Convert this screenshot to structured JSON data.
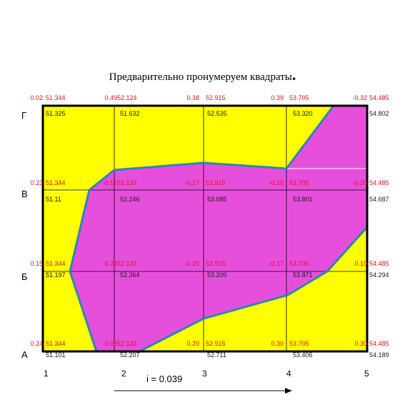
{
  "title": "Предварительно пронумеруем квадраты",
  "title_dot": ".",
  "row_labels": [
    "Г",
    "В",
    "Б",
    "А"
  ],
  "col_labels": [
    "1",
    "2",
    "3",
    "4",
    "5"
  ],
  "slope_label": "i = 0.039",
  "design_marks": {
    "Г": [
      {
        "diff": "0.02",
        "design": "51.344"
      },
      {
        "diff": "0.49",
        "design": "52.124"
      },
      {
        "diff": "0.38",
        "design": "52.915"
      },
      {
        "diff": "0.39",
        "design": "53.705"
      },
      {
        "diff": "-0.32",
        "design": "54.485"
      }
    ],
    "В": [
      {
        "diff": "0.23",
        "design": "51.344"
      },
      {
        "diff": "-0.12",
        "design": "52.124"
      },
      {
        "diff": "-0.17",
        "design": "52.915"
      },
      {
        "diff": "-0.10",
        "design": "53.705"
      },
      {
        "diff": "-0.20",
        "design": "54.485"
      }
    ],
    "Б": [
      {
        "diff": "0.15",
        "design": "51.344"
      },
      {
        "diff": "-0.24",
        "design": "52.124"
      },
      {
        "diff": "-0.29",
        "design": "52.915"
      },
      {
        "diff": "-0.17",
        "design": "53.705"
      },
      {
        "diff": "0.19",
        "design": "54.485"
      }
    ],
    "А": [
      {
        "diff": "0.24",
        "design": "51.344"
      },
      {
        "diff": "-0.08",
        "design": "52.124"
      },
      {
        "diff": "0.20",
        "design": "52.915"
      },
      {
        "diff": "0.30",
        "design": "53.705"
      },
      {
        "diff": "0.30",
        "design": "54.485"
      }
    ]
  },
  "natural_marks": {
    "Г": [
      "51.325",
      "51.632",
      "52.535",
      "53.320",
      "54.802"
    ],
    "В": [
      "51.11",
      "52.246",
      "53.085",
      "53.801",
      "54.687"
    ],
    "Б": [
      "51.197",
      "52.364",
      "53.200",
      "53.871",
      "54.294"
    ],
    "А": [
      "51.101",
      "52.207",
      "52.711",
      "53.406",
      "54.189"
    ]
  },
  "colors": {
    "fill_area": "#ffff00",
    "cut_area": "#e64fdc",
    "zero_line": "#2a86b8",
    "grid_line": "#000000",
    "diff_text": "#e0141e",
    "mark_text": "#1a1a1a"
  }
}
